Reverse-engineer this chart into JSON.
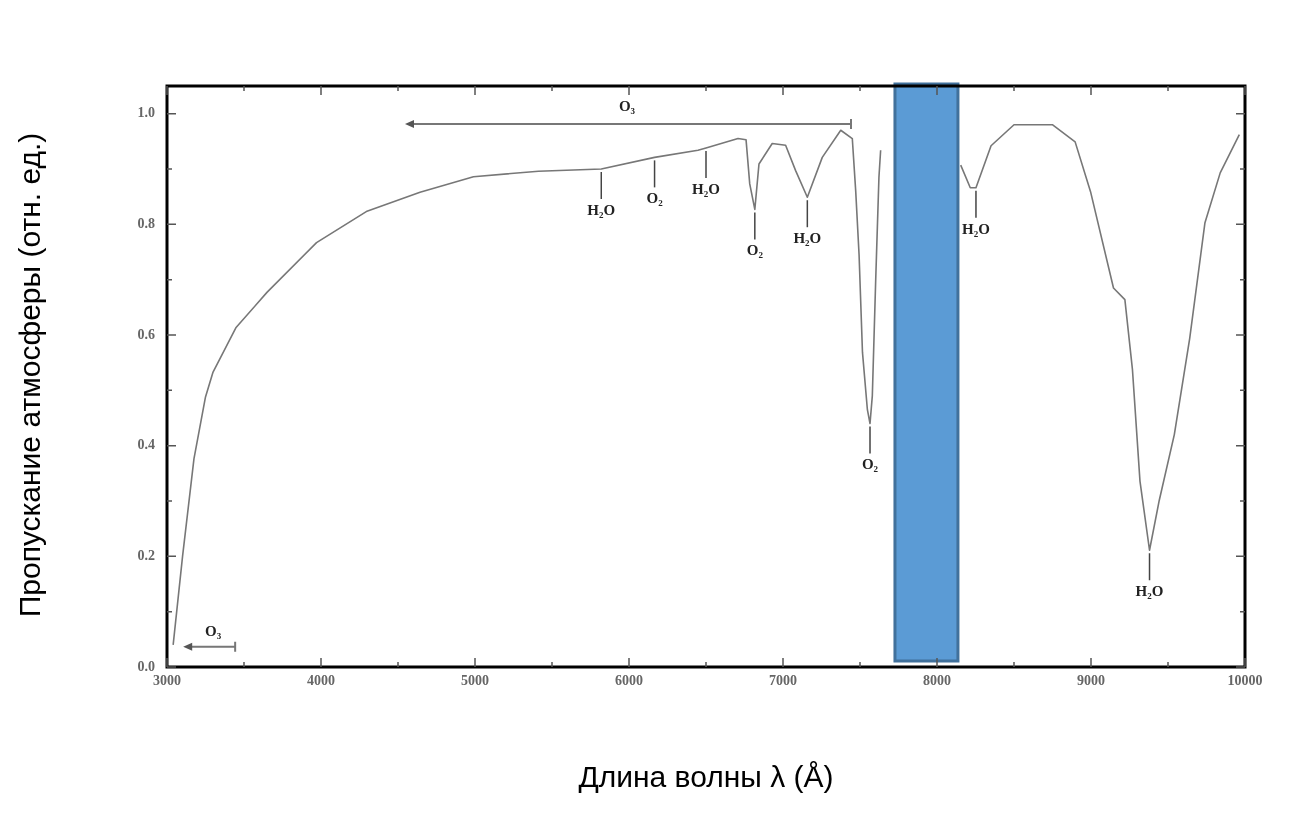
{
  "chart_data": {
    "type": "line",
    "xlabel": "Длина волны  λ (Å)",
    "ylabel": "Пропускание атмосферы (отн. ед.)",
    "xlim": [
      3000,
      10000
    ],
    "ylim": [
      0,
      1.05
    ],
    "xticks": [
      {
        "value": 3000,
        "label": "3000"
      },
      {
        "value": 3500,
        "label": null
      },
      {
        "value": 4000,
        "label": "4000"
      },
      {
        "value": 4500,
        "label": null
      },
      {
        "value": 5000,
        "label": "5000"
      },
      {
        "value": 5500,
        "label": null
      },
      {
        "value": 6000,
        "label": "6000"
      },
      {
        "value": 6500,
        "label": null
      },
      {
        "value": 7000,
        "label": "7000"
      },
      {
        "value": 7500,
        "label": null
      },
      {
        "value": 8000,
        "label": "8000"
      },
      {
        "value": 8500,
        "label": null
      },
      {
        "value": 9000,
        "label": "9000"
      },
      {
        "value": 9500,
        "label": null
      },
      {
        "value": 10000,
        "label": "10000"
      }
    ],
    "yticks": [
      {
        "value": 0,
        "label": "0.0"
      },
      {
        "value": 0.1,
        "label": null
      },
      {
        "value": 0.2,
        "label": "0.2"
      },
      {
        "value": 0.3,
        "label": null
      },
      {
        "value": 0.4,
        "label": "0.4"
      },
      {
        "value": 0.5,
        "label": null
      },
      {
        "value": 0.6,
        "label": "0.6"
      },
      {
        "value": 0.7,
        "label": null
      },
      {
        "value": 0.8,
        "label": "0.8"
      },
      {
        "value": 0.9,
        "label": null
      },
      {
        "value": 1,
        "label": "1.0"
      }
    ],
    "grid": false,
    "legend": false,
    "marker": "none",
    "line_style": "solid",
    "series": [
      {
        "color": "#777777",
        "x": [
          3040,
          3101,
          3175,
          3250,
          3299,
          3447,
          3649,
          3971,
          4294,
          4643,
          4990,
          5412,
          5820,
          6166,
          6448,
          6500,
          6708,
          6760,
          6784,
          6817,
          6844,
          6930,
          7017,
          7082,
          7158,
          7255,
          7375,
          7450,
          7472,
          7494,
          7516,
          7548,
          7565,
          7580,
          7602,
          7623,
          7634,
          7900,
          8154,
          8216,
          8253,
          8351,
          8500,
          8749,
          8897,
          8997,
          9146,
          9220,
          9269,
          9318,
          9380,
          9443,
          9541,
          9641,
          9740,
          9839,
          9963
        ],
        "values": [
          0.04,
          0.2,
          0.376,
          0.488,
          0.533,
          0.613,
          0.677,
          0.767,
          0.823,
          0.858,
          0.886,
          0.896,
          0.9,
          0.921,
          0.934,
          0.938,
          0.955,
          0.953,
          0.873,
          0.827,
          0.909,
          0.946,
          0.943,
          0.897,
          0.849,
          0.921,
          0.97,
          0.955,
          0.861,
          0.745,
          0.569,
          0.465,
          0.44,
          0.49,
          0.7,
          0.885,
          0.934,
          null,
          0.907,
          0.866,
          0.866,
          0.942,
          0.98,
          0.98,
          0.949,
          0.859,
          0.685,
          0.664,
          0.538,
          0.336,
          0.211,
          0.301,
          0.42,
          0.594,
          0.803,
          0.893,
          0.962
        ]
      }
    ],
    "bands": [
      {
        "axis": "x",
        "from": 7727,
        "to": 8136,
        "color": "#5b9bd5"
      }
    ],
    "annotations": [
      "O₃",
      {
        "text": "O₃",
        "x": 3040,
        "y": 0.04
      },
      {
        "text": "H₂O",
        "x": 5820,
        "y": 0.9
      },
      {
        "text": "O₂",
        "x": 6166,
        "y": 0.921
      },
      {
        "text": "H₂O",
        "x": 6500,
        "y": 0.938
      },
      {
        "text": "O₂",
        "x": 6817,
        "y": 0.827
      },
      {
        "text": "H₂O",
        "x": 7158,
        "y": 0.849
      },
      {
        "text": "O₂",
        "x": 7565,
        "y": 0.44
      },
      {
        "text": "H₂O",
        "x": 8253,
        "y": 0.866
      },
      {
        "text": "H₂O",
        "x": 9380,
        "y": 0.211
      }
    ]
  }
}
